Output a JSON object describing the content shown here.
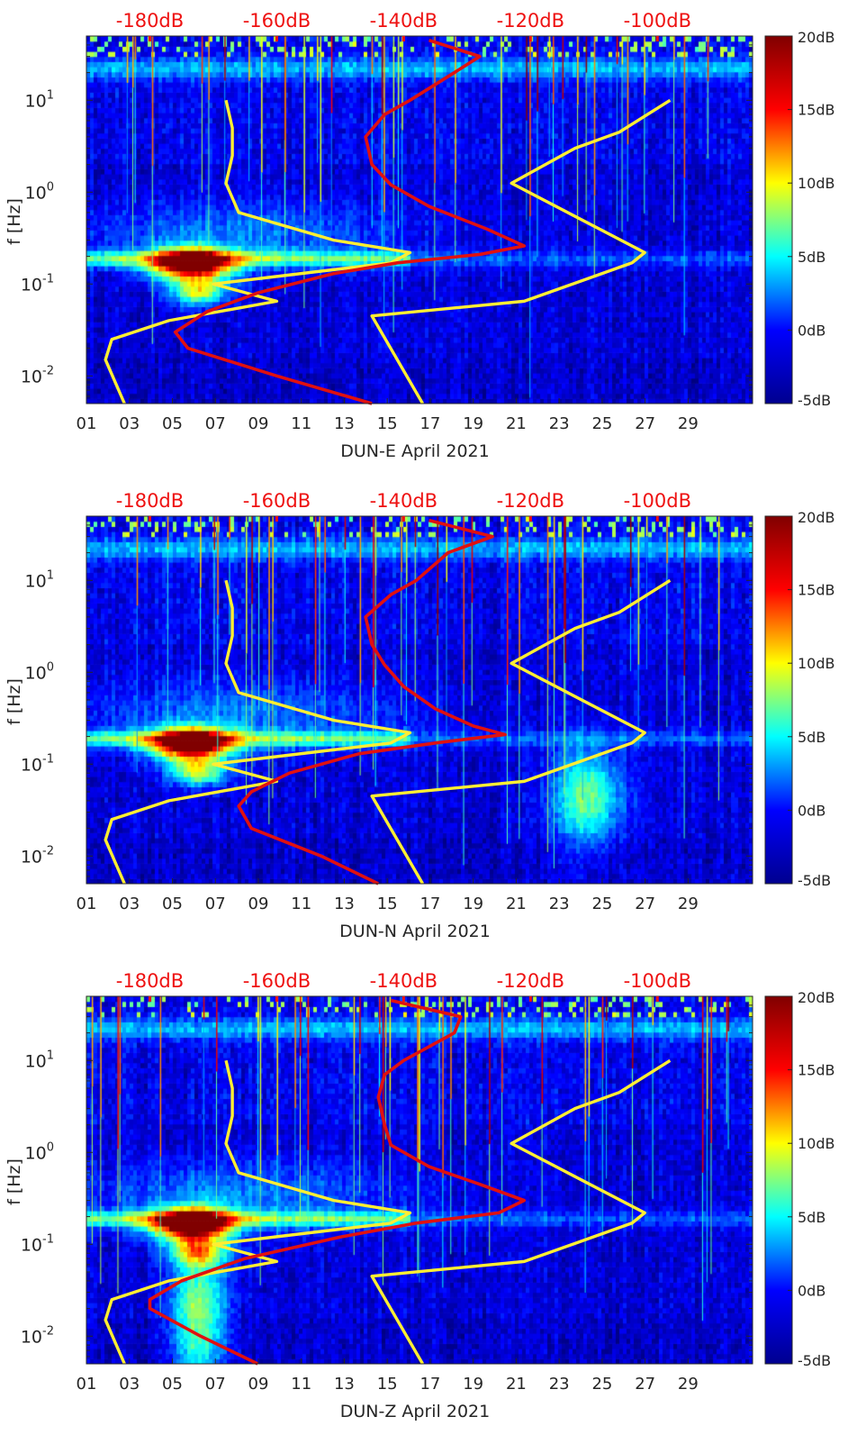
{
  "colors": {
    "red_curve": "#e01010",
    "yellow_curve": "#ffee33",
    "db_label": "#ee1111",
    "axis_text": "#262626",
    "colormap": [
      "#00008f",
      "#0000ff",
      "#00ffff",
      "#ffff00",
      "#ff0000",
      "#800000"
    ]
  },
  "chart_data": [
    {
      "type": "heatmap",
      "title": "",
      "xlabel": "DUN-E April 2021",
      "ylabel": "f [Hz]",
      "xlim": [
        1,
        32
      ],
      "ylim": [
        0.005,
        50
      ],
      "yscale": "log",
      "x_ticks": [
        "01",
        "03",
        "05",
        "07",
        "09",
        "11",
        "13",
        "15",
        "17",
        "19",
        "21",
        "23",
        "25",
        "27",
        "29"
      ],
      "y_ticks": [
        {
          "label": "10",
          "exp": "-2"
        },
        {
          "label": "10",
          "exp": "-1"
        },
        {
          "label": "10",
          "exp": "0"
        },
        {
          "label": "10",
          "exp": "1"
        }
      ],
      "top_axis": {
        "labels": [
          "-180dB",
          "-160dB",
          "-140dB",
          "-120dB",
          "-100dB"
        ],
        "values": [
          -180,
          -160,
          -140,
          -120,
          -100
        ],
        "range": [
          -190,
          -85
        ]
      },
      "colorbar": {
        "ticks": [
          "20dB",
          "15dB",
          "10dB",
          "5dB",
          "0dB",
          "-5dB"
        ],
        "range": [
          -5,
          20
        ]
      },
      "grid": false,
      "noise_models": {
        "new_low_noise_model": {
          "freq_hz": [
            0.005,
            0.015,
            0.025,
            0.04,
            0.065,
            0.1,
            0.17,
            0.22,
            0.3,
            0.6,
            1.25,
            2.5,
            5,
            10
          ],
          "level_db": [
            -184,
            -187,
            -186,
            -177,
            -160,
            -170,
            -142,
            -139,
            -151,
            -166,
            -168,
            -167,
            -167,
            -168
          ]
        },
        "new_high_noise_model": {
          "freq_hz": [
            0.005,
            0.045,
            0.065,
            0.17,
            0.22,
            1.25,
            3,
            4.5,
            10
          ],
          "level_db": [
            -137,
            -145,
            -121,
            -104,
            -102,
            -123,
            -113,
            -106,
            -98
          ]
        }
      },
      "series": [
        {
          "name": "",
          "freq_hz": [
            0.005,
            0.01,
            0.02,
            0.03,
            0.05,
            0.08,
            0.13,
            0.17,
            0.21,
            0.26,
            0.4,
            0.7,
            1.2,
            2,
            4,
            7,
            10,
            20,
            30,
            45
          ],
          "level_db": [
            -145,
            -160,
            -174,
            -176,
            -171,
            -163,
            -151,
            -141,
            -128,
            -121,
            -127,
            -136,
            -142,
            -145,
            -146,
            -143,
            -139,
            -132,
            -128,
            -136
          ]
        }
      ]
    },
    {
      "type": "heatmap",
      "title": "",
      "xlabel": "DUN-N April 2021",
      "ylabel": "f [Hz]",
      "xlim": [
        1,
        32
      ],
      "ylim": [
        0.005,
        50
      ],
      "yscale": "log",
      "x_ticks": [
        "01",
        "03",
        "05",
        "07",
        "09",
        "11",
        "13",
        "15",
        "17",
        "19",
        "21",
        "23",
        "25",
        "27",
        "29"
      ],
      "y_ticks": [
        {
          "label": "10",
          "exp": "-2"
        },
        {
          "label": "10",
          "exp": "-1"
        },
        {
          "label": "10",
          "exp": "0"
        },
        {
          "label": "10",
          "exp": "1"
        }
      ],
      "top_axis": {
        "labels": [
          "-180dB",
          "-160dB",
          "-140dB",
          "-120dB",
          "-100dB"
        ],
        "values": [
          -180,
          -160,
          -140,
          -120,
          -100
        ],
        "range": [
          -190,
          -85
        ]
      },
      "colorbar": {
        "ticks": [
          "20dB",
          "15dB",
          "10dB",
          "5dB",
          "0dB",
          "-5dB"
        ],
        "range": [
          -5,
          20
        ]
      },
      "grid": false,
      "noise_models": {
        "new_low_noise_model": {
          "freq_hz": [
            0.005,
            0.015,
            0.025,
            0.04,
            0.065,
            0.1,
            0.17,
            0.22,
            0.3,
            0.6,
            1.25,
            2.5,
            5,
            10
          ],
          "level_db": [
            -184,
            -187,
            -186,
            -177,
            -160,
            -170,
            -142,
            -139,
            -151,
            -166,
            -168,
            -167,
            -167,
            -168
          ]
        },
        "new_high_noise_model": {
          "freq_hz": [
            0.005,
            0.045,
            0.065,
            0.17,
            0.22,
            1.25,
            3,
            4.5,
            10
          ],
          "level_db": [
            -137,
            -145,
            -121,
            -104,
            -102,
            -123,
            -113,
            -106,
            -98
          ]
        }
      },
      "series": [
        {
          "name": "",
          "freq_hz": [
            0.005,
            0.01,
            0.02,
            0.035,
            0.05,
            0.08,
            0.13,
            0.17,
            0.21,
            0.26,
            0.4,
            0.7,
            1.2,
            2,
            4,
            7,
            10,
            20,
            30,
            45
          ],
          "level_db": [
            -144,
            -153,
            -164,
            -166,
            -164,
            -158,
            -147,
            -135,
            -124,
            -129,
            -135,
            -140,
            -143,
            -145,
            -146,
            -142,
            -138,
            -133,
            -126,
            -136
          ]
        }
      ]
    },
    {
      "type": "heatmap",
      "title": "",
      "xlabel": "DUN-Z April 2021",
      "ylabel": "f [Hz]",
      "xlim": [
        1,
        32
      ],
      "ylim": [
        0.005,
        50
      ],
      "yscale": "log",
      "x_ticks": [
        "01",
        "03",
        "05",
        "07",
        "09",
        "11",
        "13",
        "15",
        "17",
        "19",
        "21",
        "23",
        "25",
        "27",
        "29"
      ],
      "y_ticks": [
        {
          "label": "10",
          "exp": "-2"
        },
        {
          "label": "10",
          "exp": "-1"
        },
        {
          "label": "10",
          "exp": "0"
        },
        {
          "label": "10",
          "exp": "1"
        }
      ],
      "top_axis": {
        "labels": [
          "-180dB",
          "-160dB",
          "-140dB",
          "-120dB",
          "-100dB"
        ],
        "values": [
          -180,
          -160,
          -140,
          -120,
          -100
        ],
        "range": [
          -190,
          -85
        ]
      },
      "colorbar": {
        "ticks": [
          "20dB",
          "15dB",
          "10dB",
          "5dB",
          "0dB",
          "-5dB"
        ],
        "range": [
          -5,
          20
        ]
      },
      "grid": false,
      "noise_models": {
        "new_low_noise_model": {
          "freq_hz": [
            0.005,
            0.015,
            0.025,
            0.04,
            0.065,
            0.1,
            0.17,
            0.22,
            0.3,
            0.6,
            1.25,
            2.5,
            5,
            10
          ],
          "level_db": [
            -184,
            -187,
            -186,
            -177,
            -160,
            -170,
            -142,
            -139,
            -151,
            -166,
            -168,
            -167,
            -167,
            -168
          ]
        },
        "new_high_noise_model": {
          "freq_hz": [
            0.005,
            0.045,
            0.065,
            0.17,
            0.22,
            1.25,
            3,
            4.5,
            10
          ],
          "level_db": [
            -137,
            -145,
            -121,
            -104,
            -102,
            -123,
            -113,
            -106,
            -98
          ]
        }
      },
      "series": [
        {
          "name": "",
          "freq_hz": [
            0.005,
            0.01,
            0.02,
            0.025,
            0.04,
            0.07,
            0.12,
            0.17,
            0.22,
            0.3,
            0.45,
            0.7,
            1.2,
            2,
            4,
            7,
            10,
            20,
            30,
            45
          ],
          "level_db": [
            -163,
            -172,
            -180,
            -180,
            -175,
            -165,
            -150,
            -138,
            -125,
            -121,
            -128,
            -136,
            -142,
            -143,
            -144,
            -143,
            -140,
            -132,
            -131,
            -142
          ]
        }
      ]
    }
  ]
}
